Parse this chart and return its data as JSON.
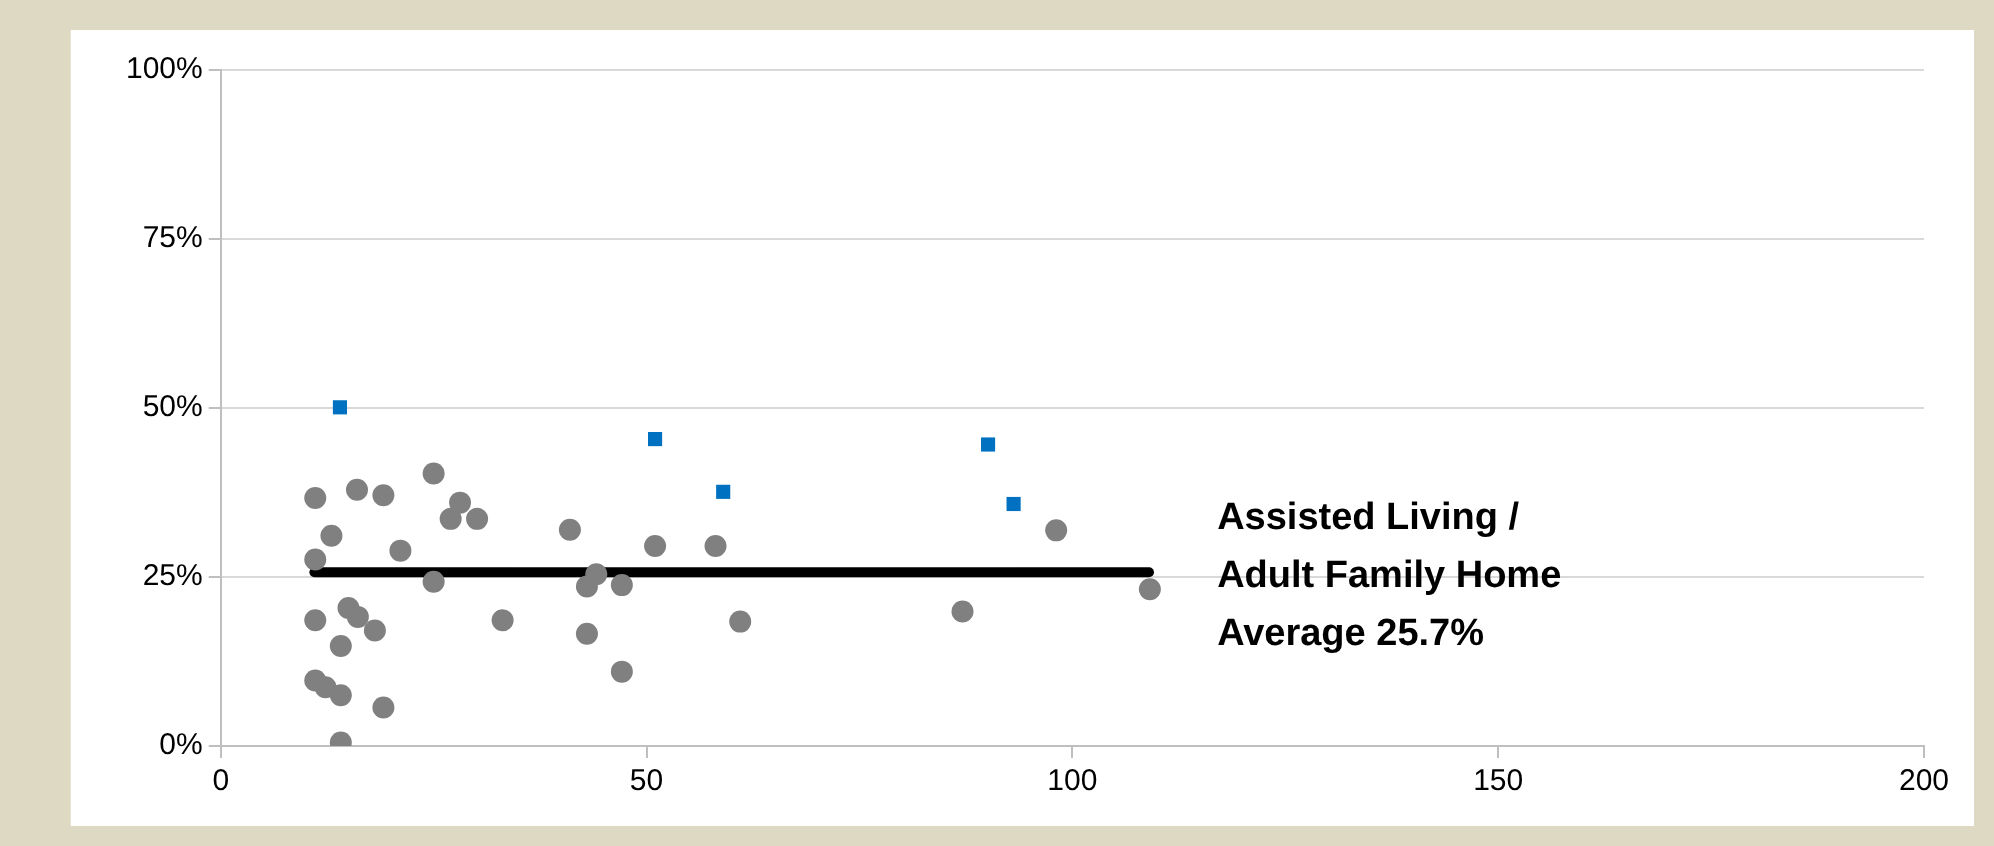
{
  "chart_data": {
    "type": "scatter",
    "xlim": [
      0,
      200
    ],
    "xticks": [
      0,
      50,
      100,
      150,
      200
    ],
    "ylim": [
      0,
      100
    ],
    "yticks": [
      {
        "value": 0,
        "label": "0%"
      },
      {
        "value": 25,
        "label": "25%"
      },
      {
        "value": 50,
        "label": "50%"
      },
      {
        "value": 75,
        "label": "75%"
      },
      {
        "value": 100,
        "label": "100%"
      }
    ],
    "grid": "y",
    "legend": false,
    "marker": "circle",
    "series": [
      {
        "color": "#808080",
        "x": [
          11.1,
          16.0,
          19.1,
          25.0,
          28.1,
          27.0,
          30.1,
          13.0,
          21.1,
          11.1,
          25.0,
          11.1,
          15.0,
          16.1,
          18.1,
          14.1,
          11.1,
          12.3,
          14.1,
          19.1,
          14.1,
          33.1,
          41.0,
          44.1,
          43.0,
          47.1,
          43.0,
          47.1,
          51.0,
          58.1,
          61.0,
          87.1,
          98.1,
          109.1
        ],
        "values": [
          36.7,
          37.9,
          37.1,
          40.3,
          36.0,
          33.6,
          33.6,
          31.1,
          28.9,
          27.6,
          24.3,
          18.6,
          20.4,
          19.1,
          17.1,
          14.8,
          9.7,
          8.7,
          7.5,
          5.7,
          0.5,
          18.6,
          32.0,
          25.4,
          23.6,
          23.8,
          16.6,
          11.0,
          29.6,
          29.6,
          18.4,
          19.9,
          31.9,
          23.2
        ]
      },
      {
        "type": "scatter",
        "color": "#0070c0",
        "marker": "square",
        "x": [
          14.0,
          51.0,
          59.0,
          90.1,
          93.1
        ],
        "values": [
          50.1,
          45.4,
          37.6,
          44.6,
          35.8
        ]
      },
      {
        "type": "line",
        "color": "#000000",
        "marker": "none",
        "line_style": "solid",
        "x": [
          11,
          109
        ],
        "values": [
          25.7,
          25.7
        ]
      }
    ],
    "annotations": [
      "Assisted Living /\nAdult Family Home\nAverage 25.7%"
    ]
  }
}
